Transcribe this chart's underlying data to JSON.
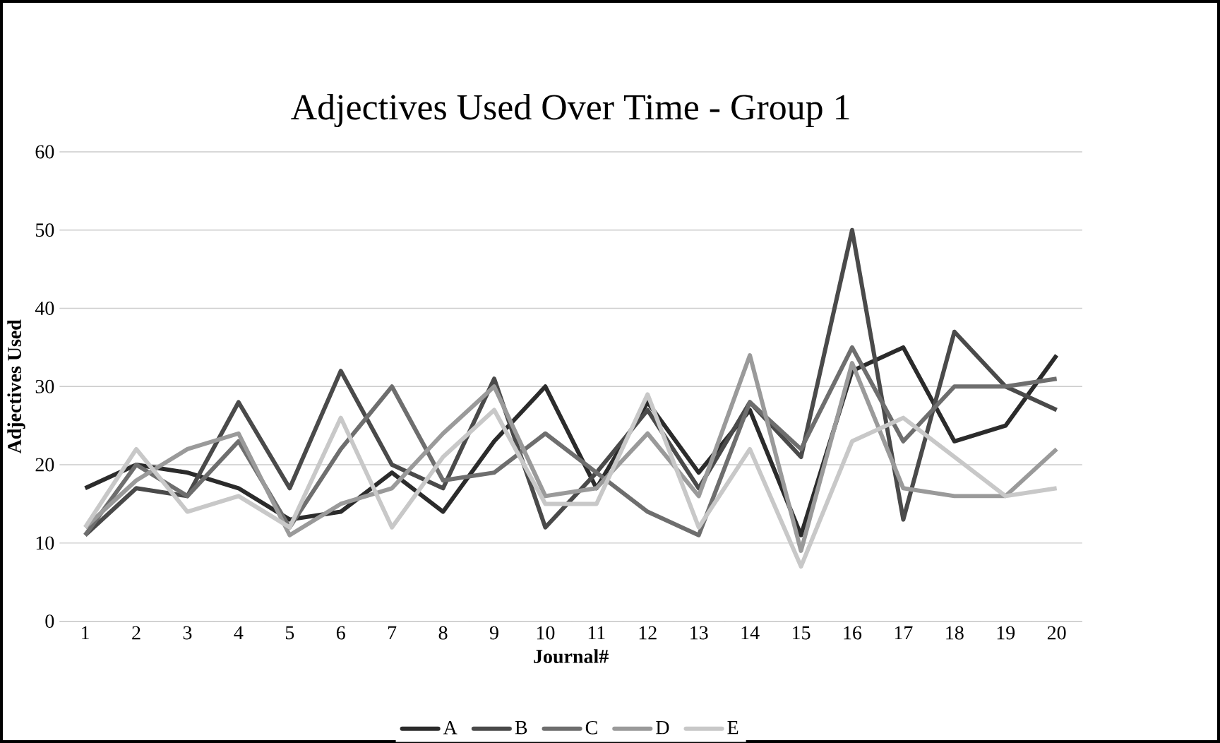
{
  "chart_data": {
    "type": "line",
    "title": "Adjectives Used Over Time - Group 1",
    "xlabel": "Journal#",
    "ylabel": "Adjectives Used",
    "categories": [
      "1",
      "2",
      "3",
      "4",
      "5",
      "6",
      "7",
      "8",
      "9",
      "10",
      "11",
      "12",
      "13",
      "14",
      "15",
      "16",
      "17",
      "18",
      "19",
      "20"
    ],
    "series": [
      {
        "name": "A",
        "color": "#2b2b2b",
        "values": [
          17,
          20,
          19,
          17,
          13,
          14,
          19,
          14,
          23,
          30,
          17,
          28,
          19,
          27,
          11,
          32,
          35,
          23,
          25,
          34
        ]
      },
      {
        "name": "B",
        "color": "#4a4a4a",
        "values": [
          11,
          17,
          16,
          28,
          17,
          32,
          20,
          17,
          31,
          12,
          19,
          27,
          17,
          28,
          21,
          50,
          13,
          37,
          30,
          27
        ]
      },
      {
        "name": "C",
        "color": "#6e6e6e",
        "values": [
          11,
          20,
          16,
          23,
          12,
          22,
          30,
          18,
          19,
          24,
          19,
          14,
          11,
          28,
          22,
          35,
          23,
          30,
          30,
          31
        ]
      },
      {
        "name": "D",
        "color": "#9a9a9a",
        "values": [
          12,
          18,
          22,
          24,
          11,
          15,
          17,
          24,
          30,
          16,
          17,
          24,
          16,
          34,
          9,
          33,
          17,
          16,
          16,
          22
        ]
      },
      {
        "name": "E",
        "color": "#c8c8c8",
        "values": [
          12,
          22,
          14,
          16,
          12,
          26,
          12,
          21,
          27,
          15,
          15,
          29,
          12,
          22,
          7,
          23,
          26,
          21,
          16,
          17
        ]
      }
    ],
    "ylim": [
      0,
      60
    ],
    "yticks": [
      0,
      10,
      20,
      30,
      40,
      50,
      60
    ],
    "grid": "y",
    "legend": "bottom",
    "marker": "none",
    "line_style": "solid"
  }
}
